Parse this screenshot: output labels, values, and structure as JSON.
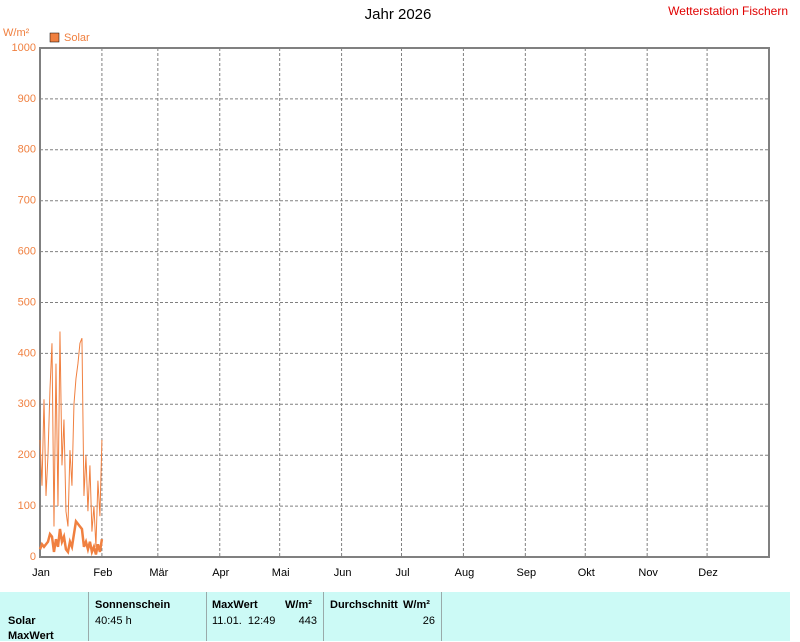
{
  "chart_data": {
    "type": "line",
    "title": "Jahr 2026",
    "annotation": "Wetterstation Fischern",
    "ylabel": "W/m²",
    "xlim": [
      0,
      365
    ],
    "ylim": [
      0,
      1000
    ],
    "xticks": [
      {
        "value": 0,
        "label": "Jan"
      },
      {
        "value": 31,
        "label": "Feb"
      },
      {
        "value": 59,
        "label": "Mär"
      },
      {
        "value": 90,
        "label": "Apr"
      },
      {
        "value": 120,
        "label": "Mai"
      },
      {
        "value": 151,
        "label": "Jun"
      },
      {
        "value": 181,
        "label": "Jul"
      },
      {
        "value": 212,
        "label": "Aug"
      },
      {
        "value": 243,
        "label": "Sep"
      },
      {
        "value": 273,
        "label": "Okt"
      },
      {
        "value": 304,
        "label": "Nov"
      },
      {
        "value": 334,
        "label": "Dez"
      }
    ],
    "yticks": [
      0,
      100,
      200,
      300,
      400,
      500,
      600,
      700,
      800,
      900,
      1000
    ],
    "grid": true,
    "legend": "top-left",
    "x": [
      0,
      1,
      2,
      3,
      4,
      5,
      6,
      7,
      8,
      9,
      10,
      11,
      12,
      13,
      14,
      15,
      16,
      17,
      18,
      19,
      20,
      21,
      22,
      23,
      24,
      25,
      26,
      27,
      28,
      29,
      30,
      31
    ],
    "series": [
      {
        "name": "Solar",
        "color": "#f08040",
        "values": [
          230,
          140,
          310,
          120,
          200,
          330,
          420,
          60,
          380,
          100,
          443,
          180,
          270,
          90,
          60,
          210,
          140,
          300,
          350,
          380,
          420,
          430,
          120,
          200,
          90,
          180,
          50,
          100,
          20,
          150,
          80,
          230
        ]
      },
      {
        "color": "#f08040",
        "values": [
          15,
          25,
          20,
          25,
          30,
          45,
          40,
          10,
          35,
          20,
          55,
          30,
          40,
          15,
          10,
          30,
          20,
          45,
          70,
          65,
          60,
          55,
          20,
          30,
          15,
          30,
          10,
          20,
          5,
          25,
          10,
          35
        ]
      }
    ]
  },
  "table": {
    "header": [
      "Sonnenschein",
      "MaxWert",
      "W/m²",
      "Durchschnitt",
      "W/m²"
    ],
    "rows": [
      [
        "Solar",
        "40:45 h",
        "11.01.  12:49",
        443,
        26
      ],
      [
        "MaxWert"
      ]
    ]
  }
}
